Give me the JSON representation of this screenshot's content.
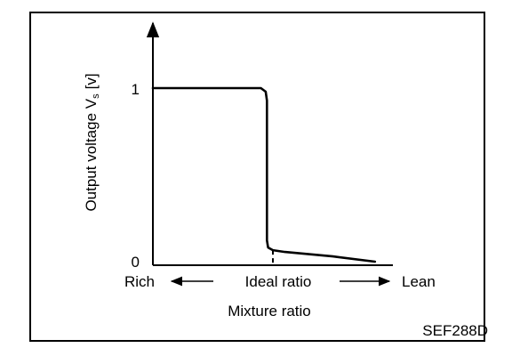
{
  "chart_data": {
    "type": "line",
    "title": "",
    "xlabel": "Mixture ratio",
    "ylabel": "Output voltage V",
    "ylabel_sub": "s",
    "ylabel_unit": "[v]",
    "yticks": [
      "1",
      "0"
    ],
    "ytick_values": [
      1,
      0
    ],
    "x_axis_labels": {
      "left": "Rich",
      "center": "Ideal ratio",
      "right": "Lean"
    },
    "ideal_ratio_x": 0,
    "xlim": [
      -1,
      1
    ],
    "ylim": [
      0,
      1.45
    ],
    "series": [
      {
        "x": [
          -1,
          -0.1,
          -0.06,
          -0.05,
          -0.05,
          -0.04,
          0,
          0.1,
          0.5,
          0.85
        ],
        "y": [
          1,
          1,
          0.98,
          0.93,
          0.14,
          0.1,
          0.085,
          0.075,
          0.05,
          0.02
        ]
      }
    ],
    "grid": false
  },
  "figure_code": "SEF288D"
}
